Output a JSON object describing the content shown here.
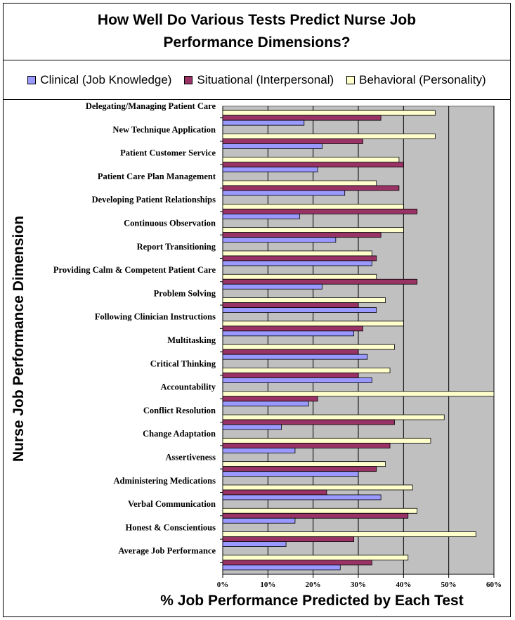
{
  "chart_data": {
    "type": "bar",
    "orientation": "horizontal",
    "title": "How Well Do Various Tests Predict Nurse Job Performance Dimensions?",
    "xlabel": "% Job Performance Predicted by Each Test",
    "ylabel": "Nurse Job Performance Dimension",
    "xlim": [
      0,
      60
    ],
    "xticks": [
      "0%",
      "10%",
      "20%",
      "30%",
      "40%",
      "50%",
      "60%"
    ],
    "grid": true,
    "legend_position": "top",
    "categories": [
      "Delegating/Managing Patient Care",
      "New Technique Application",
      "Patient Customer Service",
      "Patient Care Plan Management",
      "Developing Patient Relationships",
      "Continuous Observation",
      "Report Transitioning",
      "Providing Calm & Competent Patient Care",
      "Problem Solving",
      "Following Clinician Instructions",
      "Multitasking",
      "Critical Thinking",
      "Accountability",
      "Conflict Resolution",
      "Change Adaptation",
      "Assertiveness",
      "Administering Medications",
      "Verbal Communication",
      "Honest & Conscientious",
      "Average Job Performance"
    ],
    "series": [
      {
        "name": "Behavioral (Personality)",
        "color": "#ffffcc",
        "values": [
          47,
          47,
          39,
          34,
          40,
          40,
          33,
          34,
          36,
          40,
          38,
          37,
          60,
          49,
          46,
          36,
          42,
          43,
          56,
          41
        ]
      },
      {
        "name": "Situational (Interpersonal)",
        "color": "#993366",
        "values": [
          35,
          31,
          40,
          39,
          43,
          35,
          34,
          43,
          30,
          31,
          30,
          30,
          21,
          38,
          37,
          34,
          23,
          41,
          29,
          33
        ]
      },
      {
        "name": "Clinical (Job Knowledge)",
        "color": "#9999ff",
        "values": [
          18,
          22,
          21,
          27,
          17,
          25,
          33,
          22,
          34,
          29,
          32,
          33,
          19,
          13,
          16,
          30,
          35,
          16,
          14,
          26
        ]
      }
    ]
  },
  "legend": {
    "items": [
      {
        "label": "Clinical (Job Knowledge)",
        "color": "#9999ff"
      },
      {
        "label": "Situational (Interpersonal)",
        "color": "#993366"
      },
      {
        "label": "Behavioral (Personality)",
        "color": "#ffffcc"
      }
    ]
  },
  "colors": {
    "plot_background": "#c0c0c0",
    "gridline": "#000000"
  }
}
